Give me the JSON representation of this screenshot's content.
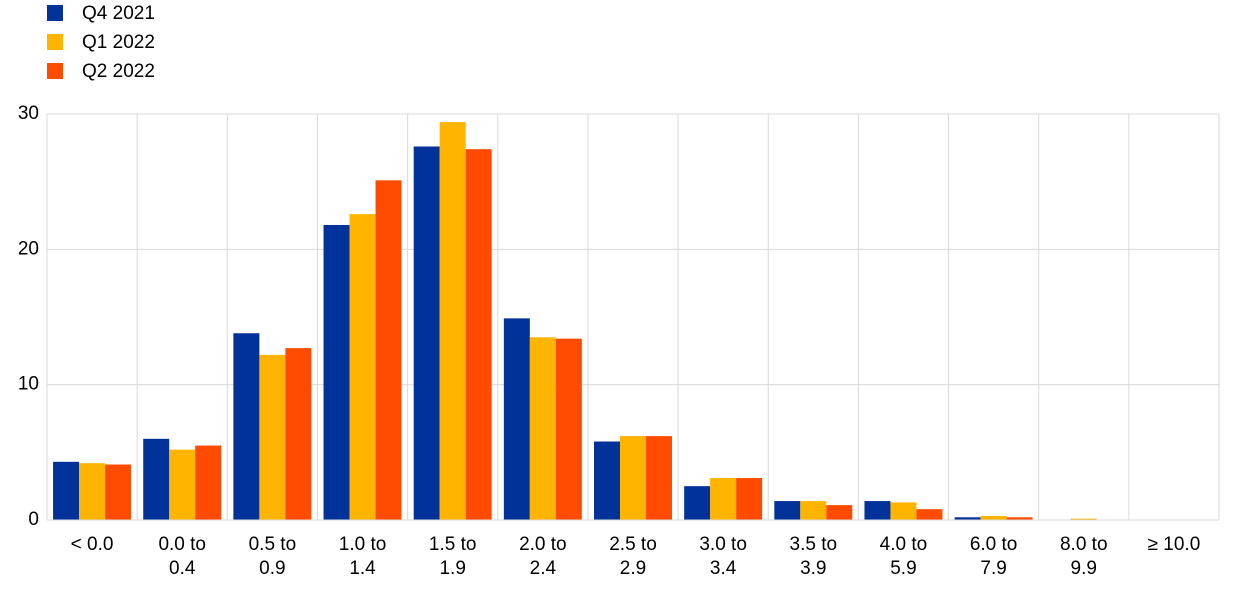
{
  "chart_data": {
    "type": "bar",
    "categories": [
      "< 0.0",
      "0.0  to\n0.4",
      "0.5  to\n0.9",
      "1.0  to\n1.4",
      "1.5  to\n1.9",
      "2.0  to\n2.4",
      "2.5  to\n2.9",
      "3.0  to\n3.4",
      "3.5  to\n3.9",
      "4.0  to\n5.9",
      "6.0  to\n7.9",
      "8.0  to\n9.9",
      "≥ 10.0"
    ],
    "series": [
      {
        "name": "Q4 2021",
        "color": "#003299",
        "values": [
          4.3,
          6.0,
          13.8,
          21.8,
          27.6,
          14.9,
          5.8,
          2.5,
          1.4,
          1.4,
          0.2,
          0.0,
          0.0
        ]
      },
      {
        "name": "Q1 2022",
        "color": "#ffb400",
        "values": [
          4.2,
          5.2,
          12.2,
          22.6,
          29.4,
          13.5,
          6.2,
          3.1,
          1.4,
          1.3,
          0.3,
          0.1,
          0.0
        ]
      },
      {
        "name": "Q2 2022",
        "color": "#ff4b00",
        "values": [
          4.1,
          5.5,
          12.7,
          25.1,
          27.4,
          13.4,
          6.2,
          3.1,
          1.1,
          0.8,
          0.2,
          0.0,
          0.0
        ]
      }
    ],
    "ylim": [
      0,
      30
    ],
    "yticks": [
      0,
      10,
      20,
      30
    ],
    "grid": true,
    "legend": "top-left"
  }
}
